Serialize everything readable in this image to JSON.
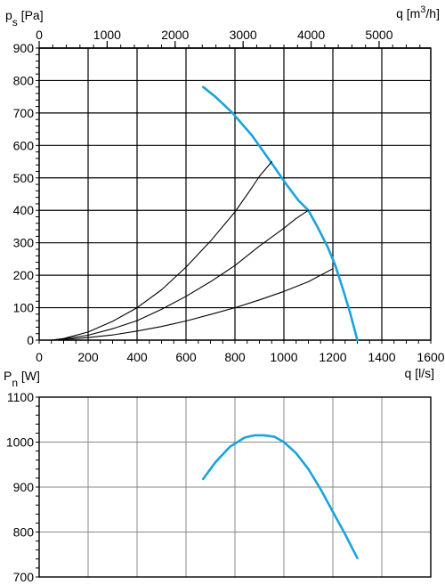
{
  "chart_data": [
    {
      "type": "line",
      "x_axis_bottom": {
        "label": "q [l/s]",
        "range": [
          0,
          1600
        ],
        "ticks": [
          "0",
          "200",
          "400",
          "600",
          "800",
          "1000",
          "1200",
          "1400",
          "1600"
        ]
      },
      "x_axis_top": {
        "label_main": "q [m",
        "label_sup": "3",
        "label_end": "/h]",
        "range_m3h": [
          0,
          5760
        ],
        "tick_values": [
          0,
          1000,
          2000,
          3000,
          4000,
          5000
        ],
        "ticks": [
          "0",
          "1000",
          "2000",
          "3000",
          "4000",
          "5000"
        ]
      },
      "y_axis": {
        "label_main": "p",
        "label_sub": "s",
        "label_end": " [Pa]",
        "range": [
          0,
          900
        ],
        "ticks": [
          "0",
          "100",
          "200",
          "300",
          "400",
          "500",
          "600",
          "700",
          "800",
          "900"
        ]
      },
      "grid": true,
      "series": [
        {
          "color": "#1ba3dd",
          "x": [
            670,
            720,
            790,
            870,
            950,
            1010,
            1060,
            1100,
            1140,
            1180,
            1210,
            1240,
            1270,
            1300
          ],
          "y": [
            780,
            750,
            700,
            630,
            545,
            480,
            430,
            400,
            345,
            285,
            230,
            160,
            85,
            0
          ]
        },
        {
          "color": "#000000",
          "x": [
            50,
            100,
            200,
            300,
            400,
            500,
            600,
            700,
            800,
            860,
            900,
            950
          ],
          "y": [
            0,
            5,
            25,
            58,
            100,
            155,
            225,
            305,
            395,
            460,
            505,
            550
          ]
        },
        {
          "color": "#000000",
          "x": [
            50,
            100,
            200,
            300,
            400,
            500,
            600,
            700,
            800,
            900,
            1000,
            1050,
            1100
          ],
          "y": [
            0,
            4,
            15,
            35,
            60,
            95,
            135,
            180,
            230,
            290,
            345,
            375,
            400
          ]
        },
        {
          "color": "#000000",
          "x": [
            50,
            100,
            200,
            300,
            400,
            500,
            600,
            700,
            800,
            900,
            1000,
            1100,
            1200
          ],
          "y": [
            0,
            2,
            8,
            16,
            28,
            42,
            59,
            79,
            100,
            124,
            150,
            180,
            220
          ]
        }
      ]
    },
    {
      "type": "line",
      "x_axis": {
        "range": [
          0,
          1600
        ]
      },
      "y_axis": {
        "label_main": "P",
        "label_sub": "n",
        "label_end": " [W]",
        "range": [
          700,
          1100
        ],
        "ticks": [
          "700",
          "800",
          "900",
          "1000",
          "1100"
        ],
        "tick_values": [
          700,
          800,
          900,
          1000,
          1100
        ]
      },
      "grid": true,
      "series": [
        {
          "color": "#1ba3dd",
          "x": [
            670,
            720,
            780,
            840,
            880,
            920,
            960,
            1000,
            1050,
            1100,
            1150,
            1200,
            1250,
            1300
          ],
          "y": [
            918,
            955,
            990,
            1010,
            1015,
            1015,
            1012,
            1000,
            975,
            940,
            895,
            845,
            795,
            742
          ]
        }
      ]
    }
  ]
}
